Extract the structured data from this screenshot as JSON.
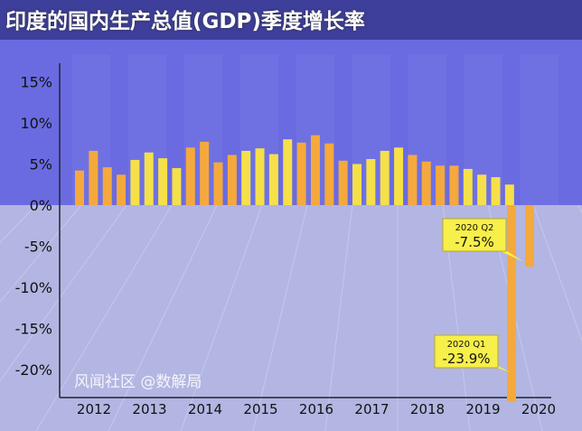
{
  "title": "印度的国内生产总值(GDP)季度增长率",
  "watermark": "风闻社区 @数解局",
  "colors": {
    "orange": "#f5a93c",
    "yellow": "#f5e04a",
    "top_bg": "#6a6be0",
    "bottom_bg": "#b3b6e2"
  },
  "chart_data": {
    "type": "bar",
    "title": "印度的国内生产总值(GDP)季度增长率",
    "ylim": [
      -25,
      18
    ],
    "yticks": [
      15,
      10,
      5,
      0,
      -5,
      -10,
      -15,
      -20
    ],
    "ytick_labels": [
      "15%",
      "10%",
      "5%",
      "0%",
      "-5%",
      "-10%",
      "-15%",
      "-20%"
    ],
    "xtick_labels": [
      "2012",
      "2013",
      "2014",
      "2015",
      "2016",
      "2017",
      "2018",
      "2019",
      "2020"
    ],
    "values": [
      4.2,
      6.6,
      4.6,
      3.7,
      5.5,
      6.4,
      5.7,
      4.5,
      7.0,
      7.7,
      5.2,
      6.1,
      6.6,
      6.9,
      6.2,
      8.0,
      7.6,
      8.5,
      7.5,
      5.4,
      5.0,
      5.6,
      6.6,
      7.0,
      6.1,
      5.3,
      4.8,
      4.8,
      4.4,
      3.7,
      3.4,
      2.5,
      -23.9,
      -7.5
    ],
    "annotations": [
      {
        "period": "2020 Q1",
        "label": "-23.9%",
        "value": -23.9
      },
      {
        "period": "2020 Q2",
        "label": "-7.5%",
        "value": -7.5
      }
    ]
  }
}
